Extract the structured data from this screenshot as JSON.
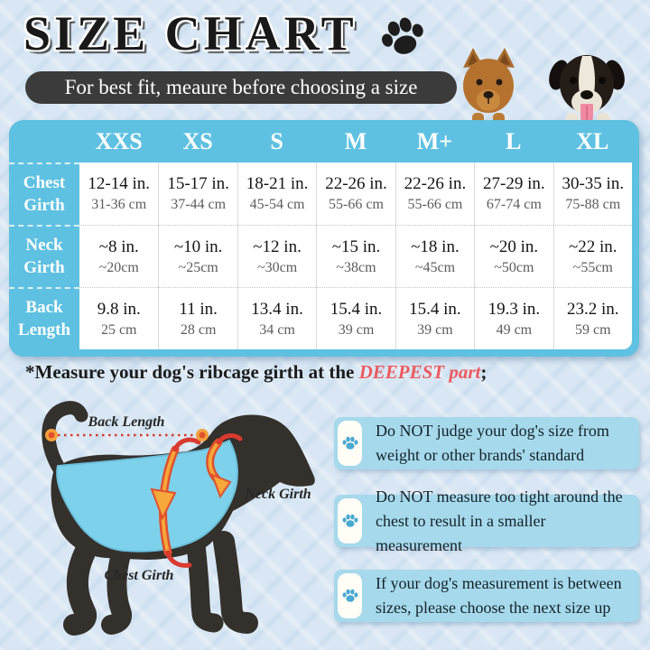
{
  "title": {
    "text": "SIZE CHART"
  },
  "banner": {
    "text": "For best fit, meaure before choosing a size"
  },
  "size_table": {
    "columns": [
      "XXS",
      "XS",
      "S",
      "M",
      "M+",
      "L",
      "XL"
    ],
    "rows": [
      {
        "label_line1": "Chest",
        "label_line2": "Girth",
        "cells": [
          {
            "in": "12-14 in.",
            "cm": "31-36 cm"
          },
          {
            "in": "15-17 in.",
            "cm": "37-44 cm"
          },
          {
            "in": "18-21 in.",
            "cm": "45-54 cm"
          },
          {
            "in": "22-26 in.",
            "cm": "55-66 cm"
          },
          {
            "in": "22-26 in.",
            "cm": "55-66 cm"
          },
          {
            "in": "27-29 in.",
            "cm": "67-74 cm"
          },
          {
            "in": "30-35 in.",
            "cm": "75-88 cm"
          }
        ]
      },
      {
        "label_line1": "Neck",
        "label_line2": "Girth",
        "cells": [
          {
            "in": "~8 in.",
            "cm": "~20cm"
          },
          {
            "in": "~10 in.",
            "cm": "~25cm"
          },
          {
            "in": "~12 in.",
            "cm": "~30cm"
          },
          {
            "in": "~15 in.",
            "cm": "~38cm"
          },
          {
            "in": "~18 in.",
            "cm": "~45cm"
          },
          {
            "in": "~20 in.",
            "cm": "~50cm"
          },
          {
            "in": "~22 in.",
            "cm": "~55cm"
          }
        ]
      },
      {
        "label_line1": "Back",
        "label_line2": "Length",
        "cells": [
          {
            "in": "9.8 in.",
            "cm": "25 cm"
          },
          {
            "in": "11 in.",
            "cm": "28 cm"
          },
          {
            "in": "13.4 in.",
            "cm": "34 cm"
          },
          {
            "in": "15.4 in.",
            "cm": "39 cm"
          },
          {
            "in": "15.4 in.",
            "cm": "39 cm"
          },
          {
            "in": "19.3 in.",
            "cm": "49 cm"
          },
          {
            "in": "23.2 in.",
            "cm": "59 cm"
          }
        ]
      }
    ]
  },
  "note": {
    "prefix": "*Measure your dog's ribcage girth at the ",
    "highlight": "DEEPEST part",
    "suffix": ";"
  },
  "diagram": {
    "back_length_label": "Back Length",
    "neck_girth_label": "Neck Girth",
    "chest_girth_label": "Chest Girth"
  },
  "tips": [
    {
      "text": "Do NOT judge your dog's size from weight or other brands' standard"
    },
    {
      "text": "Do NOT measure too tight around the chest to result in a smaller measurement"
    },
    {
      "text": "If your dog's measurement is between sizes, please choose the next size up"
    }
  ],
  "icons": {
    "title_icon": "paw-print",
    "tip_icon": "paw-print"
  },
  "colors": {
    "table_blue": "#5fc1e1",
    "tip_box_blue": "#a6d9eb",
    "banner_dark": "#3b3b3b",
    "highlight_red": "#ee5a5e",
    "vest_blue": "#7ed1ea",
    "background_blue": "#d9e7f4"
  }
}
